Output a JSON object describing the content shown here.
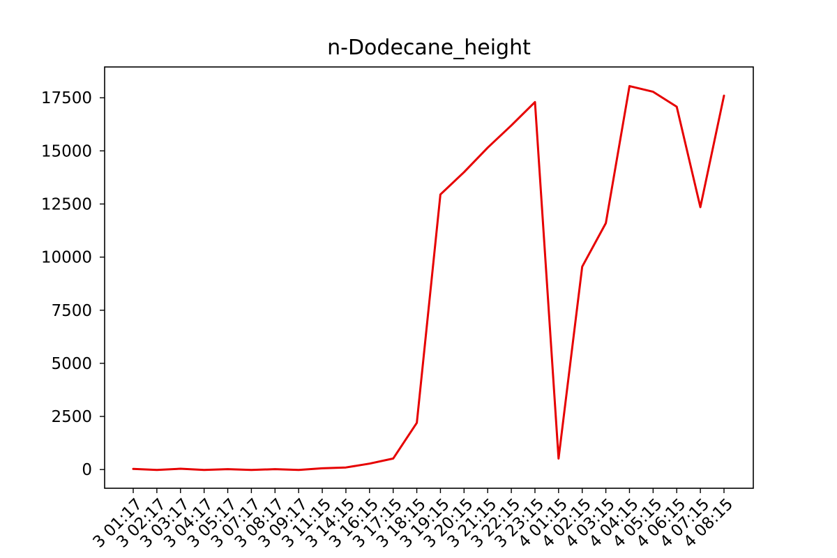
{
  "chart_data": {
    "type": "line",
    "title": "n-Dodecane_height",
    "xlabel": "",
    "ylabel": "",
    "grid": false,
    "x_tick_labels": [
      "3 01:17",
      "3 02:17",
      "3 03:17",
      "3 04:17",
      "3 05:17",
      "3 07:17",
      "3 08:17",
      "3 09:17",
      "3 11:15",
      "3 14:15",
      "3 16:15",
      "3 17:15",
      "3 18:15",
      "3 19:15",
      "3 20:15",
      "3 21:15",
      "3 22:15",
      "3 23:15",
      "4 01:15",
      "4 02:15",
      "4 03:15",
      "4 04:15",
      "4 05:15",
      "4 06:15",
      "4 07:15",
      "4 08:15"
    ],
    "y_ticks": [
      0,
      2500,
      5000,
      7500,
      10000,
      12500,
      15000,
      17500
    ],
    "ylim": [
      -880,
      18950
    ],
    "series": [
      {
        "color": "#e60000",
        "values": [
          30,
          -20,
          40,
          -20,
          20,
          -20,
          20,
          -20,
          60,
          100,
          280,
          520,
          2200,
          12950,
          14000,
          15150,
          16200,
          17300,
          520,
          9550,
          11600,
          18050,
          17780,
          17080,
          12350,
          17600
        ]
      }
    ]
  }
}
